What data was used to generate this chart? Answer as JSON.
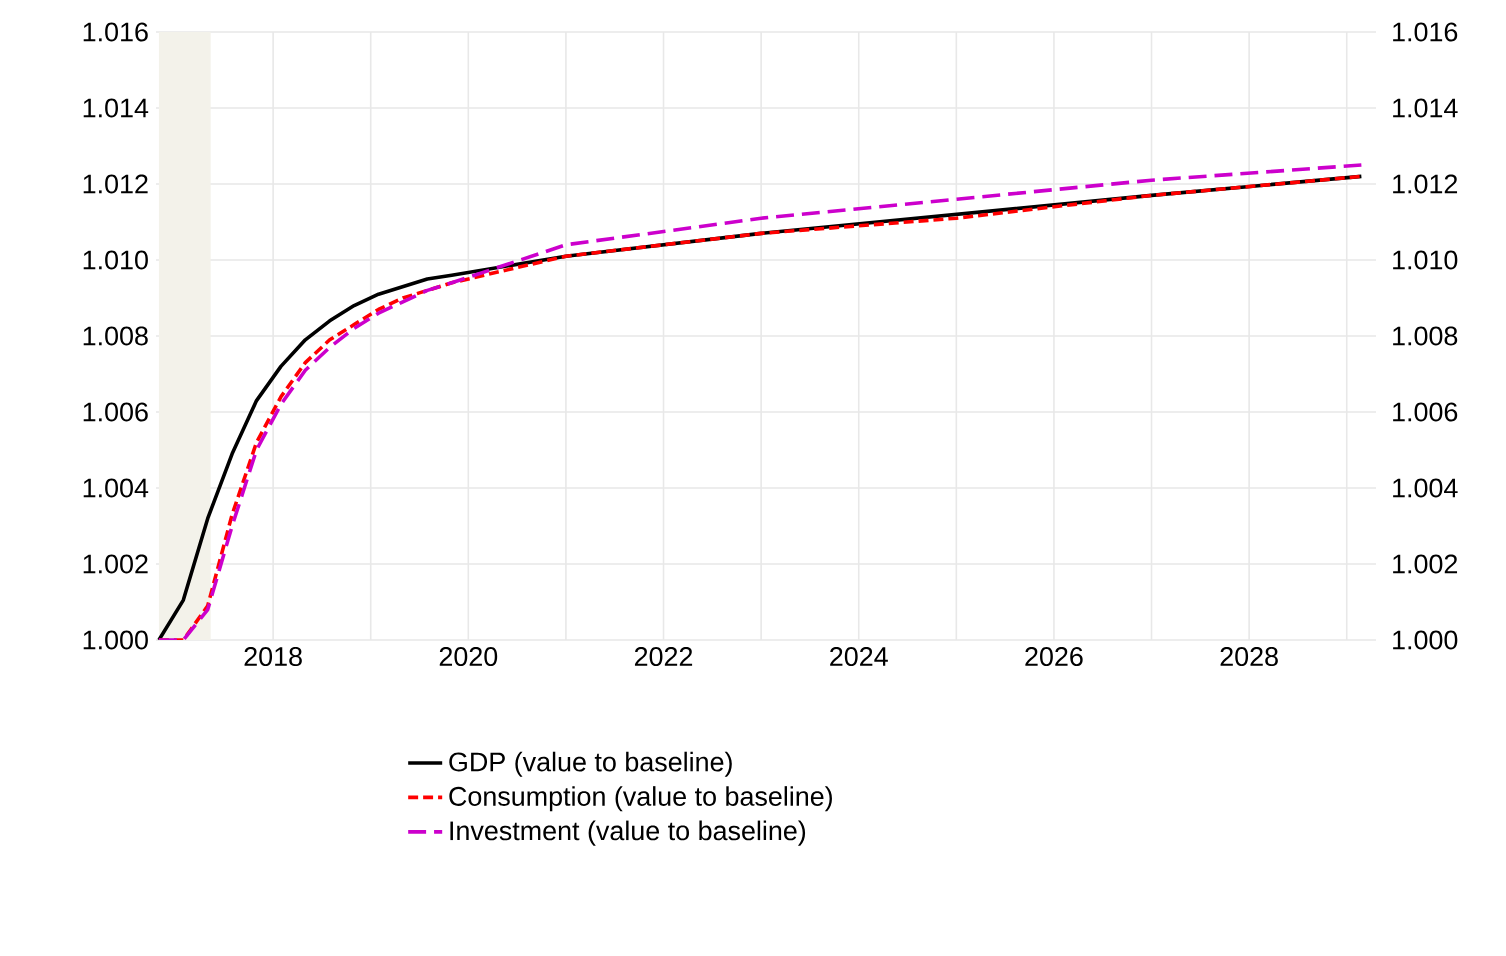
{
  "chart_data": {
    "type": "line",
    "x": [
      2016.83,
      2017.08,
      2017.33,
      2017.58,
      2017.83,
      2018.08,
      2018.33,
      2018.58,
      2018.83,
      2019.08,
      2019.33,
      2019.58,
      2019.83,
      2021,
      2023,
      2025,
      2027,
      2029.15
    ],
    "series": [
      {
        "name": "GDP (value to baseline)",
        "color": "#000000",
        "line_style": "solid",
        "values": [
          1.0,
          1.00105,
          1.0032,
          1.0049,
          1.0063,
          1.0072,
          1.0079,
          1.0084,
          1.0088,
          1.0091,
          1.0093,
          1.0095,
          1.0096,
          1.0101,
          1.0107,
          1.0112,
          1.0117,
          1.0122
        ]
      },
      {
        "name": "Consumption (value to baseline)",
        "color": "#ff0000",
        "line_style": "dashed",
        "values": [
          1.0,
          1.0,
          1.0009,
          1.0033,
          1.0052,
          1.0064,
          1.0073,
          1.0079,
          1.0083,
          1.0087,
          1.009,
          1.0092,
          1.0094,
          1.0101,
          1.0107,
          1.0111,
          1.0117,
          1.0122
        ]
      },
      {
        "name": "Investment (value to baseline)",
        "color": "#cc00cc",
        "line_style": "dashed",
        "values": [
          1.0,
          1.0,
          1.0008,
          1.003,
          1.005,
          1.0062,
          1.0071,
          1.0077,
          1.0082,
          1.0086,
          1.0089,
          1.0092,
          1.0094,
          1.0104,
          1.0111,
          1.0116,
          1.0121,
          1.0125
        ]
      }
    ],
    "xlim": [
      2016.8,
      2029.3
    ],
    "xticks": [
      2018,
      {
        "value": 2019,
        "label": null
      },
      2020,
      {
        "value": 2021,
        "label": null
      },
      2022,
      {
        "value": 2023,
        "label": null
      },
      2024,
      {
        "value": 2025,
        "label": null
      },
      2026,
      {
        "value": 2027,
        "label": null
      },
      2028,
      {
        "value": 2029,
        "label": null
      }
    ],
    "ylim": [
      1.0,
      1.016
    ],
    "yticks": [
      {
        "value": 1.0,
        "label": "1.000"
      },
      {
        "value": 1.002,
        "label": "1.002"
      },
      {
        "value": 1.004,
        "label": "1.004"
      },
      {
        "value": 1.006,
        "label": "1.006"
      },
      {
        "value": 1.008,
        "label": "1.008"
      },
      {
        "value": 1.01,
        "label": "1.010"
      },
      {
        "value": 1.012,
        "label": "1.012"
      },
      {
        "value": 1.014,
        "label": "1.014"
      },
      {
        "value": 1.016,
        "label": "1.016"
      }
    ],
    "y2lim": [
      1.0,
      1.016
    ],
    "y2ticks": [
      {
        "value": 1.0,
        "label": "1.000"
      },
      {
        "value": 1.002,
        "label": "1.002"
      },
      {
        "value": 1.004,
        "label": "1.004"
      },
      {
        "value": 1.006,
        "label": "1.006"
      },
      {
        "value": 1.008,
        "label": "1.008"
      },
      {
        "value": 1.01,
        "label": "1.010"
      },
      {
        "value": 1.012,
        "label": "1.012"
      },
      {
        "value": 1.014,
        "label": "1.014"
      },
      {
        "value": 1.016,
        "label": "1.016"
      }
    ],
    "bands": [
      {
        "axis": "x",
        "from": 2016.83,
        "to": 2017.36,
        "color": "#f3f2ea"
      }
    ],
    "grid": true,
    "legend": "bottom"
  }
}
